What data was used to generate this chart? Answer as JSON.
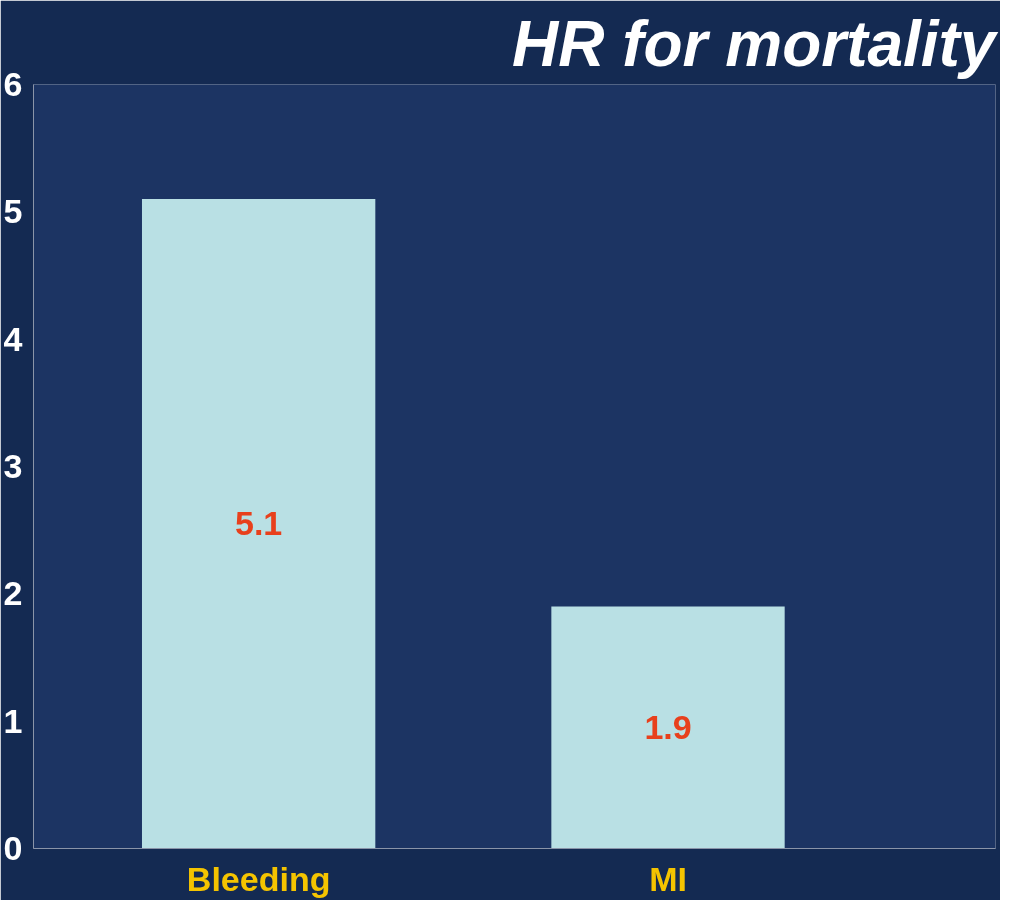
{
  "chart_data": {
    "type": "bar",
    "title": "HR for mortality",
    "categories": [
      "Bleeding",
      "MI"
    ],
    "values": [
      5.1,
      1.9
    ],
    "color": "#b9e0e4",
    "data_labels": true,
    "ylim": [
      0,
      6
    ],
    "yticks": [
      0,
      1,
      2,
      3,
      4,
      5,
      6
    ],
    "grid": false
  }
}
